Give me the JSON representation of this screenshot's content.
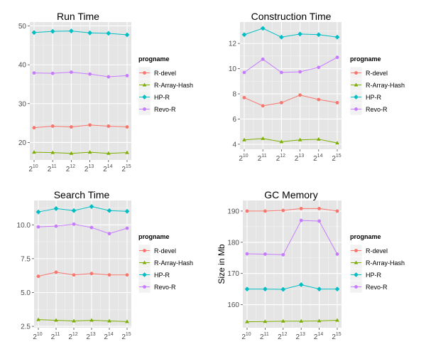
{
  "colors": {
    "panel_bg": "#E5E5E5",
    "grid_major": "#FFFFFF",
    "grid_minor": "#F2F2F2",
    "axis_text": "#4D4D4D"
  },
  "chart_data": [
    {
      "type": "line",
      "title": "Run Time",
      "xlabel": "",
      "ylabel": "",
      "x_tick_labels": [
        [
          "2",
          "10"
        ],
        [
          "2",
          "11"
        ],
        [
          "2",
          "12"
        ],
        [
          "2",
          "13"
        ],
        [
          "2",
          "14"
        ],
        [
          "2",
          "15"
        ]
      ],
      "ylim": [
        15.5,
        51
      ],
      "y_ticks": [
        20,
        30,
        40,
        50
      ],
      "y_tick_labels": [
        "20",
        "30",
        "40",
        "50"
      ],
      "legend_title": "progname",
      "legend_position": "right",
      "series": [
        {
          "name": "R-devel",
          "color": "#F8766D",
          "marker": "circle",
          "values": [
            23.8,
            24.2,
            24.0,
            24.5,
            24.2,
            24.0
          ]
        },
        {
          "name": "R-Array-Hash",
          "color": "#7CAE00",
          "marker": "triangle",
          "values": [
            17.5,
            17.4,
            17.2,
            17.5,
            17.2,
            17.4
          ]
        },
        {
          "name": "HP-R",
          "color": "#00BFC4",
          "marker": "square",
          "values": [
            48.3,
            48.6,
            48.7,
            48.2,
            48.1,
            47.7
          ]
        },
        {
          "name": "Revo-R",
          "color": "#C77CFF",
          "marker": "plus",
          "values": [
            37.9,
            37.8,
            38.1,
            37.6,
            36.9,
            37.2
          ]
        }
      ]
    },
    {
      "type": "line",
      "title": "Construction Time",
      "xlabel": "",
      "ylabel": "",
      "x_tick_labels": [
        [
          "2",
          "10"
        ],
        [
          "2",
          "11"
        ],
        [
          "2",
          "12"
        ],
        [
          "2",
          "13"
        ],
        [
          "2",
          "14"
        ],
        [
          "2",
          "15"
        ]
      ],
      "ylim": [
        3.6,
        13.7
      ],
      "y_ticks": [
        4,
        6,
        8,
        10,
        12
      ],
      "y_tick_labels": [
        "4",
        "6",
        "8",
        "10",
        "12"
      ],
      "legend_title": "progname",
      "legend_position": "right",
      "series": [
        {
          "name": "R-devel",
          "color": "#F8766D",
          "marker": "circle",
          "values": [
            7.7,
            7.05,
            7.3,
            7.9,
            7.55,
            7.3
          ]
        },
        {
          "name": "R-Array-Hash",
          "color": "#7CAE00",
          "marker": "triangle",
          "values": [
            4.35,
            4.45,
            4.2,
            4.35,
            4.4,
            4.1
          ]
        },
        {
          "name": "HP-R",
          "color": "#00BFC4",
          "marker": "square",
          "values": [
            12.7,
            13.2,
            12.5,
            12.75,
            12.7,
            12.5
          ]
        },
        {
          "name": "Revo-R",
          "color": "#C77CFF",
          "marker": "plus",
          "values": [
            9.7,
            10.75,
            9.7,
            9.75,
            10.1,
            10.9
          ]
        }
      ]
    },
    {
      "type": "line",
      "title": "Search Time",
      "xlabel": "",
      "ylabel": "",
      "x_tick_labels": [
        [
          "2",
          "10"
        ],
        [
          "2",
          "11"
        ],
        [
          "2",
          "12"
        ],
        [
          "2",
          "13"
        ],
        [
          "2",
          "14"
        ],
        [
          "2",
          "15"
        ]
      ],
      "ylim": [
        2.4,
        11.8
      ],
      "y_ticks": [
        2.5,
        5.0,
        7.5,
        10.0
      ],
      "y_tick_labels": [
        "2.5",
        "5.0",
        "7.5",
        "10.0"
      ],
      "legend_title": "progname",
      "legend_position": "right",
      "series": [
        {
          "name": "R-devel",
          "color": "#F8766D",
          "marker": "circle",
          "values": [
            6.2,
            6.5,
            6.3,
            6.4,
            6.3,
            6.3
          ]
        },
        {
          "name": "R-Array-Hash",
          "color": "#7CAE00",
          "marker": "triangle",
          "values": [
            3.0,
            2.95,
            2.9,
            2.95,
            2.9,
            2.85
          ]
        },
        {
          "name": "HP-R",
          "color": "#00BFC4",
          "marker": "square",
          "values": [
            10.95,
            11.2,
            11.05,
            11.35,
            11.05,
            11.0
          ]
        },
        {
          "name": "Revo-R",
          "color": "#C77CFF",
          "marker": "plus",
          "values": [
            9.85,
            9.9,
            10.05,
            9.8,
            9.35,
            9.75
          ]
        }
      ]
    },
    {
      "type": "line",
      "title": "GC Memory",
      "xlabel": "",
      "ylabel": "Size in Mb",
      "x_tick_labels": [
        [
          "2",
          "10"
        ],
        [
          "2",
          "11"
        ],
        [
          "2",
          "12"
        ],
        [
          "2",
          "13"
        ],
        [
          "2",
          "14"
        ],
        [
          "2",
          "15"
        ]
      ],
      "ylim": [
        152.6,
        193.4
      ],
      "y_ticks": [
        160,
        170,
        180,
        190
      ],
      "y_tick_labels": [
        "160",
        "170",
        "180",
        "190"
      ],
      "legend_title": "progname",
      "legend_position": "right",
      "series": [
        {
          "name": "R-devel",
          "color": "#F8766D",
          "marker": "circle",
          "values": [
            190.0,
            190.0,
            190.2,
            190.8,
            190.8,
            190.0
          ]
        },
        {
          "name": "R-Array-Hash",
          "color": "#7CAE00",
          "marker": "triangle",
          "values": [
            154.5,
            154.6,
            154.7,
            154.7,
            154.8,
            155.0
          ]
        },
        {
          "name": "HP-R",
          "color": "#00BFC4",
          "marker": "square",
          "values": [
            165.0,
            165.0,
            164.9,
            166.4,
            165.0,
            165.0
          ]
        },
        {
          "name": "Revo-R",
          "color": "#C77CFF",
          "marker": "plus",
          "values": [
            176.3,
            176.2,
            176.0,
            187.0,
            186.8,
            176.2
          ]
        }
      ]
    }
  ]
}
